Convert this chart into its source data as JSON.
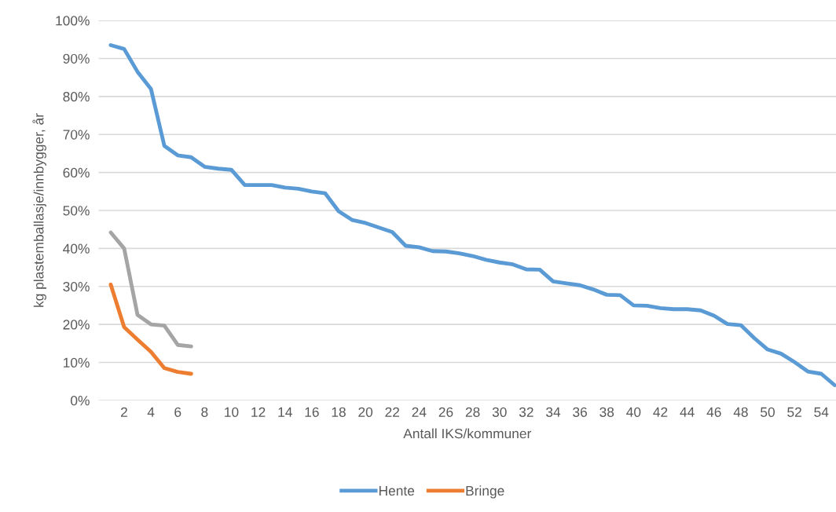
{
  "chart_data": {
    "type": "line",
    "xlabel": "Antall IKS/kommuner",
    "ylabel": "kg plastemballasje/innbygger, år",
    "categories": [
      null,
      "2",
      null,
      "4",
      null,
      "6",
      null,
      "8",
      null,
      "10",
      null,
      "12",
      null,
      "14",
      null,
      "16",
      null,
      "18",
      null,
      "20",
      null,
      "22",
      null,
      "24",
      null,
      "26",
      null,
      "28",
      null,
      "30",
      null,
      "32",
      null,
      "34",
      null,
      "36",
      null,
      "38",
      null,
      "40",
      null,
      "42",
      null,
      "44",
      null,
      "46",
      null,
      "48",
      null,
      "50",
      null,
      "52",
      null,
      "54",
      null
    ],
    "series": [
      {
        "name": "Hente",
        "color": "#5b9bd5",
        "values": [
          93.5,
          92.5,
          86.5,
          82,
          67,
          64.5,
          64,
          61.5,
          61,
          60.7,
          56.7,
          56.7,
          56.7,
          56,
          55.7,
          55,
          54.5,
          49.8,
          47.5,
          46.7,
          45.5,
          44.3,
          40.7,
          40.3,
          39.3,
          39.2,
          38.7,
          38,
          37,
          36.3,
          35.8,
          34.5,
          34.4,
          31.3,
          30.8,
          30.3,
          29.2,
          27.8,
          27.7,
          25,
          24.9,
          24.3,
          24,
          24,
          23.7,
          22.3,
          20.1,
          19.8,
          16.4,
          13.4,
          12.3,
          10.1,
          7.6,
          7,
          4
        ]
      },
      {
        "name": "Bringe",
        "color": "#ed7d31",
        "values": [
          30.5,
          19.3,
          16,
          12.8,
          8.5,
          7.5,
          7,
          null,
          null,
          null,
          null,
          null,
          null,
          null,
          null,
          null,
          null,
          null,
          null,
          null,
          null,
          null,
          null,
          null,
          null,
          null,
          null,
          null,
          null,
          null,
          null,
          null,
          null,
          null,
          null,
          null,
          null,
          null,
          null,
          null,
          null,
          null,
          null,
          null,
          null,
          null,
          null,
          null,
          null,
          null,
          null,
          null,
          null,
          null,
          null
        ]
      },
      {
        "color": "#a5a5a5",
        "values": [
          44.2,
          40,
          22.5,
          20,
          19.7,
          14.6,
          14.2,
          null,
          null,
          null,
          null,
          null,
          null,
          null,
          null,
          null,
          null,
          null,
          null,
          null,
          null,
          null,
          null,
          null,
          null,
          null,
          null,
          null,
          null,
          null,
          null,
          null,
          null,
          null,
          null,
          null,
          null,
          null,
          null,
          null,
          null,
          null,
          null,
          null,
          null,
          null,
          null,
          null,
          null,
          null,
          null,
          null,
          null,
          null,
          null
        ]
      }
    ],
    "ylim": [
      0,
      100
    ],
    "yticks": [
      {
        "value": 0,
        "label": "0%"
      },
      {
        "value": 10,
        "label": "10%"
      },
      {
        "value": 20,
        "label": "20%"
      },
      {
        "value": 30,
        "label": "30%"
      },
      {
        "value": 40,
        "label": "40%"
      },
      {
        "value": 50,
        "label": "50%"
      },
      {
        "value": 60,
        "label": "60%"
      },
      {
        "value": 70,
        "label": "70%"
      },
      {
        "value": 80,
        "label": "80%"
      },
      {
        "value": 90,
        "label": "90%"
      },
      {
        "value": 100,
        "label": "100%"
      }
    ],
    "grid": "y",
    "legend": "bottom",
    "marker": "none",
    "line_style": "solid"
  }
}
